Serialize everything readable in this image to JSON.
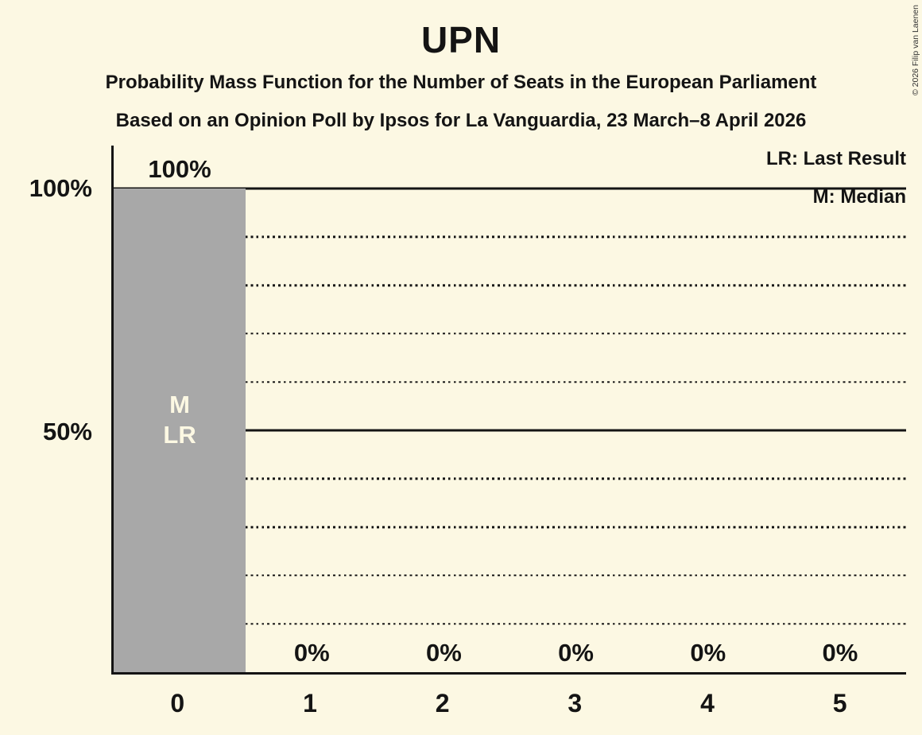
{
  "title": "UPN",
  "subtitle1": "Probability Mass Function for the Number of Seats in the European Parliament",
  "subtitle2": "Based on an Opinion Poll by Ipsos for La Vanguardia, 23 March–8 April 2026",
  "legend": {
    "lr": "LR: Last Result",
    "m": "M: Median"
  },
  "copyright": "© 2026 Filip van Laenen",
  "colors": {
    "background": "#fcf8e3",
    "bar": "#a8a8a8",
    "text": "#141414",
    "bar_label_text": "#fcf8e3"
  },
  "chart_data": {
    "type": "bar",
    "title": "UPN",
    "categories": [
      "0",
      "1",
      "2",
      "3",
      "4",
      "5"
    ],
    "values": [
      100,
      0,
      0,
      0,
      0,
      0
    ],
    "bar_labels": [
      "100%",
      "0%",
      "0%",
      "0%",
      "0%",
      "0%"
    ],
    "xlabel": "",
    "ylabel": "",
    "ylim": [
      0,
      100
    ],
    "yticks": [
      {
        "value": 100,
        "label": "100%"
      },
      {
        "value": 50,
        "label": "50%"
      }
    ],
    "gridlines": {
      "solid": [
        50,
        100
      ],
      "dotted": [
        10,
        20,
        30,
        40,
        60,
        70,
        80,
        90
      ]
    },
    "legend_position": "top-right",
    "grid": true,
    "annotations": [
      {
        "category": "0",
        "lines": [
          "M",
          "LR"
        ]
      }
    ]
  }
}
